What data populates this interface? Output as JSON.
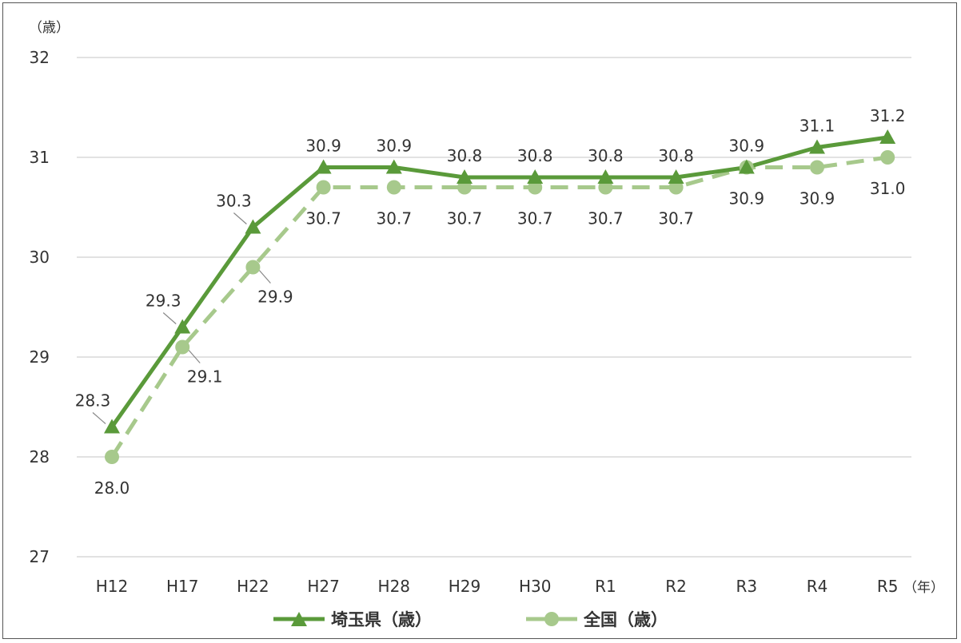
{
  "chart_data": {
    "type": "line",
    "y_unit": "（歳）",
    "x_unit": "（年）",
    "categories": [
      "H12",
      "H17",
      "H22",
      "H27",
      "H28",
      "H29",
      "H30",
      "R1",
      "R2",
      "R3",
      "R4",
      "R5"
    ],
    "ylim": [
      27,
      32
    ],
    "yticks": [
      "27",
      "28",
      "29",
      "30",
      "31",
      "32"
    ],
    "grid": true,
    "legend_position": "bottom",
    "series": [
      {
        "name": "埼玉県（歳）",
        "values": [
          28.3,
          29.3,
          30.3,
          30.9,
          30.9,
          30.8,
          30.8,
          30.8,
          30.8,
          30.9,
          31.1,
          31.2
        ],
        "labels": [
          "28.3",
          "29.3",
          "30.3",
          "30.9",
          "30.9",
          "30.8",
          "30.8",
          "30.8",
          "30.8",
          "30.9",
          "31.1",
          "31.2"
        ],
        "color": "#5a9a3a",
        "marker": "triangle",
        "line": "solid"
      },
      {
        "name": "全国（歳）",
        "values": [
          28.0,
          29.1,
          29.9,
          30.7,
          30.7,
          30.7,
          30.7,
          30.7,
          30.7,
          30.9,
          30.9,
          31.0
        ],
        "labels": [
          "28.0",
          "29.1",
          "29.9",
          "30.7",
          "30.7",
          "30.7",
          "30.7",
          "30.7",
          "30.7",
          "30.9",
          "30.9",
          "31.0"
        ],
        "color": "#a7c98c",
        "marker": "circle",
        "line": "dashed"
      }
    ]
  }
}
